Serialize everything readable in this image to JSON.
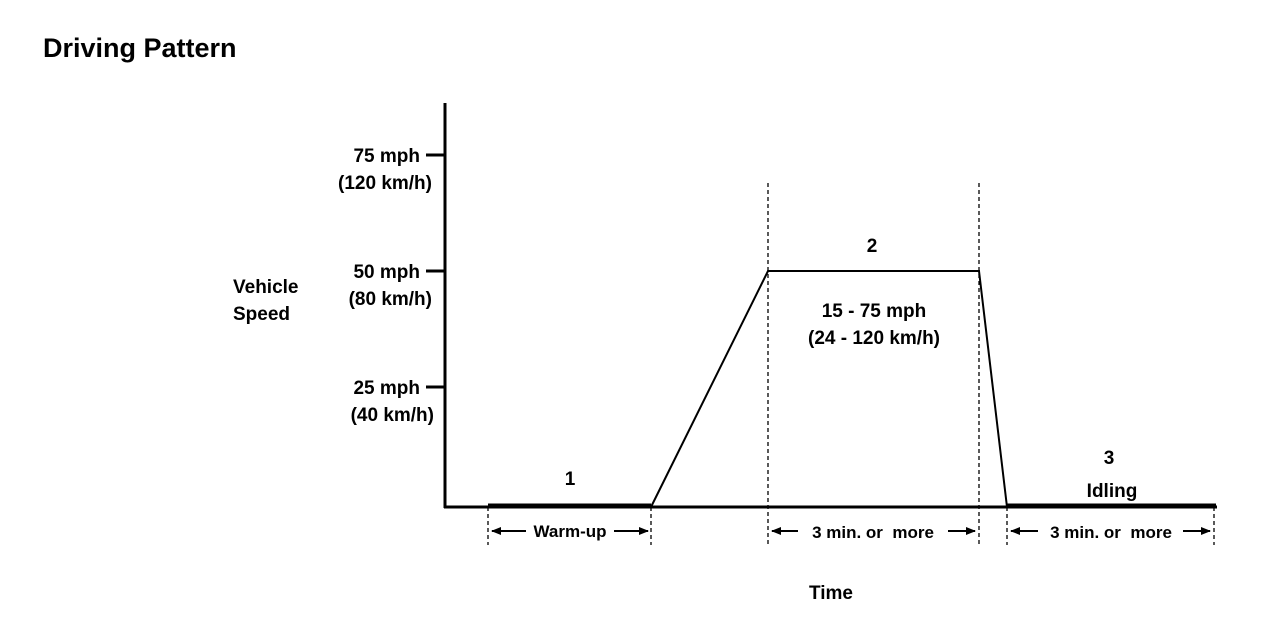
{
  "title": "Driving Pattern",
  "y_axis": {
    "label_line1": "Vehicle",
    "label_line2": "Speed",
    "ticks": [
      {
        "mph": "75 mph",
        "kmh": "(120 km/h)"
      },
      {
        "mph": "50 mph",
        "kmh": "(80 km/h)"
      },
      {
        "mph": "25 mph",
        "kmh": "(40 km/h)"
      }
    ]
  },
  "x_axis": {
    "label": "Time"
  },
  "phases": [
    {
      "number": "1",
      "duration": "Warm-up"
    },
    {
      "number": "2",
      "speed_range": "15 - 75 mph",
      "speed_range_kmh": "(24 - 120 km/h)",
      "duration": "3 min. or  more"
    },
    {
      "number": "3",
      "name": "Idling",
      "duration": "3 min. or  more"
    }
  ],
  "chart_data": {
    "type": "line",
    "title": "Driving Pattern",
    "xlabel": "Time",
    "ylabel": "Vehicle Speed",
    "yticks_mph": [
      25,
      50,
      75
    ],
    "profile_mph": [
      0,
      0,
      50,
      50,
      0,
      0
    ]
  },
  "colors": {
    "ink": "#000000",
    "background": "#ffffff"
  }
}
